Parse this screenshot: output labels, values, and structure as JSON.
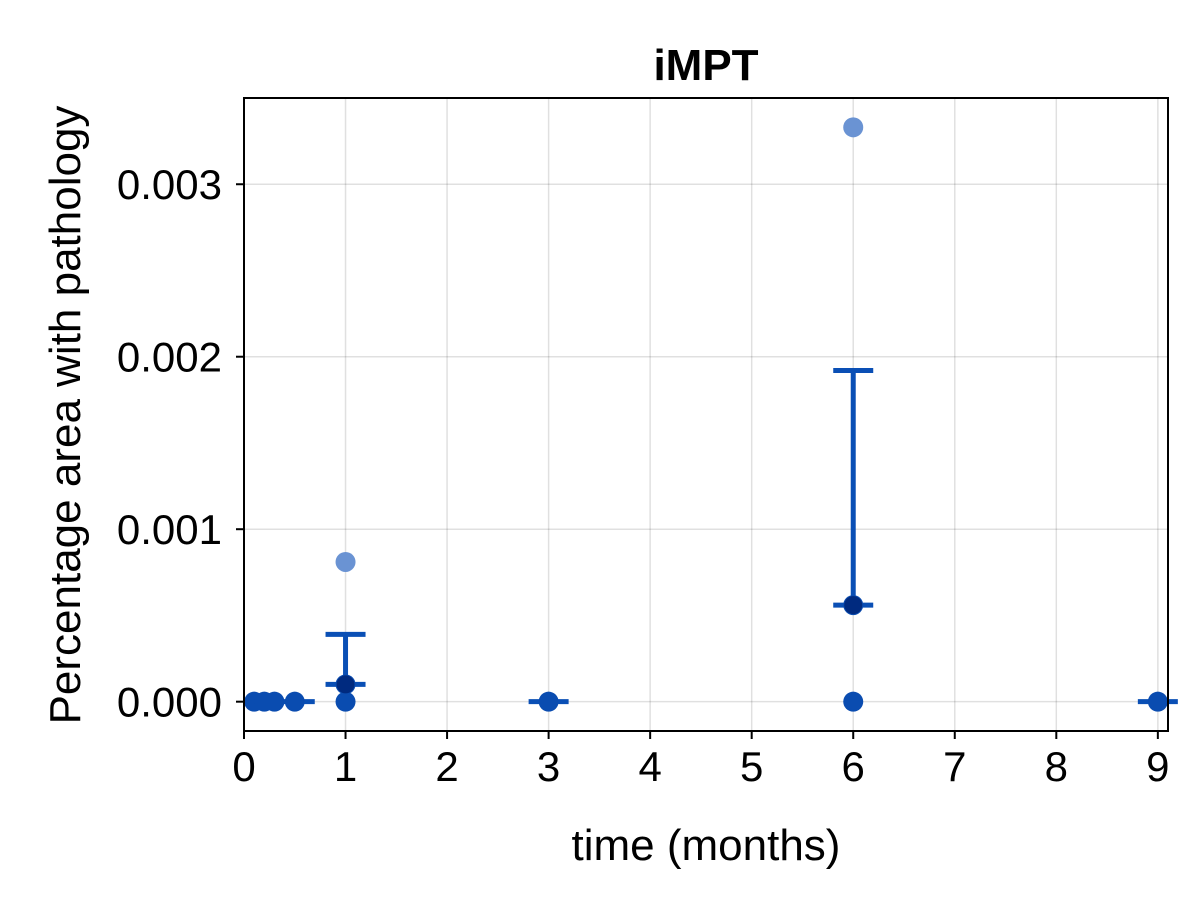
{
  "chart_data": {
    "type": "scatter",
    "title": "iMPT",
    "xlabel": "time (months)",
    "ylabel": "Percentage area with pathology",
    "xlim": [
      0,
      9.1
    ],
    "ylim": [
      -0.00017,
      0.0035
    ],
    "x_ticks": [
      0,
      1,
      2,
      3,
      4,
      5,
      6,
      7,
      8,
      9
    ],
    "x_tick_labels": [
      "0",
      "1",
      "2",
      "3",
      "4",
      "5",
      "6",
      "7",
      "8",
      "9"
    ],
    "y_ticks": [
      0.0,
      0.001,
      0.002,
      0.003
    ],
    "y_tick_labels": [
      "0.000",
      "0.001",
      "0.002",
      "0.003"
    ],
    "grid": true,
    "colors": {
      "errorbar": "#0a4fb5",
      "point_dark": "#0a4cb0",
      "point_light": "#6a93d3",
      "median": "#002a7f"
    },
    "raw_points": [
      {
        "x": 0.1,
        "y": 0.0
      },
      {
        "x": 0.2,
        "y": 0.0
      },
      {
        "x": 0.3,
        "y": 0.0
      },
      {
        "x": 0.5,
        "y": 0.0
      },
      {
        "x": 1,
        "y": 0.0
      },
      {
        "x": 1,
        "y": 0.0001
      },
      {
        "x": 1,
        "y": 0.00081
      },
      {
        "x": 3,
        "y": 0.0
      },
      {
        "x": 6,
        "y": 0.0
      },
      {
        "x": 6,
        "y": 0.00056
      },
      {
        "x": 6,
        "y": 0.00333
      },
      {
        "x": 9,
        "y": 0.0
      }
    ],
    "summary": [
      {
        "x": 0.5,
        "center": 0.0,
        "lower": 0.0,
        "upper": 0.0
      },
      {
        "x": 1,
        "center": 0.0001,
        "lower": 0.0001,
        "upper": 0.00039
      },
      {
        "x": 3,
        "center": 0.0,
        "lower": 0.0,
        "upper": 0.0
      },
      {
        "x": 6,
        "center": 0.00056,
        "lower": 0.00056,
        "upper": 0.00192
      },
      {
        "x": 9,
        "center": 0.0,
        "lower": 0.0,
        "upper": 0.0
      }
    ]
  }
}
